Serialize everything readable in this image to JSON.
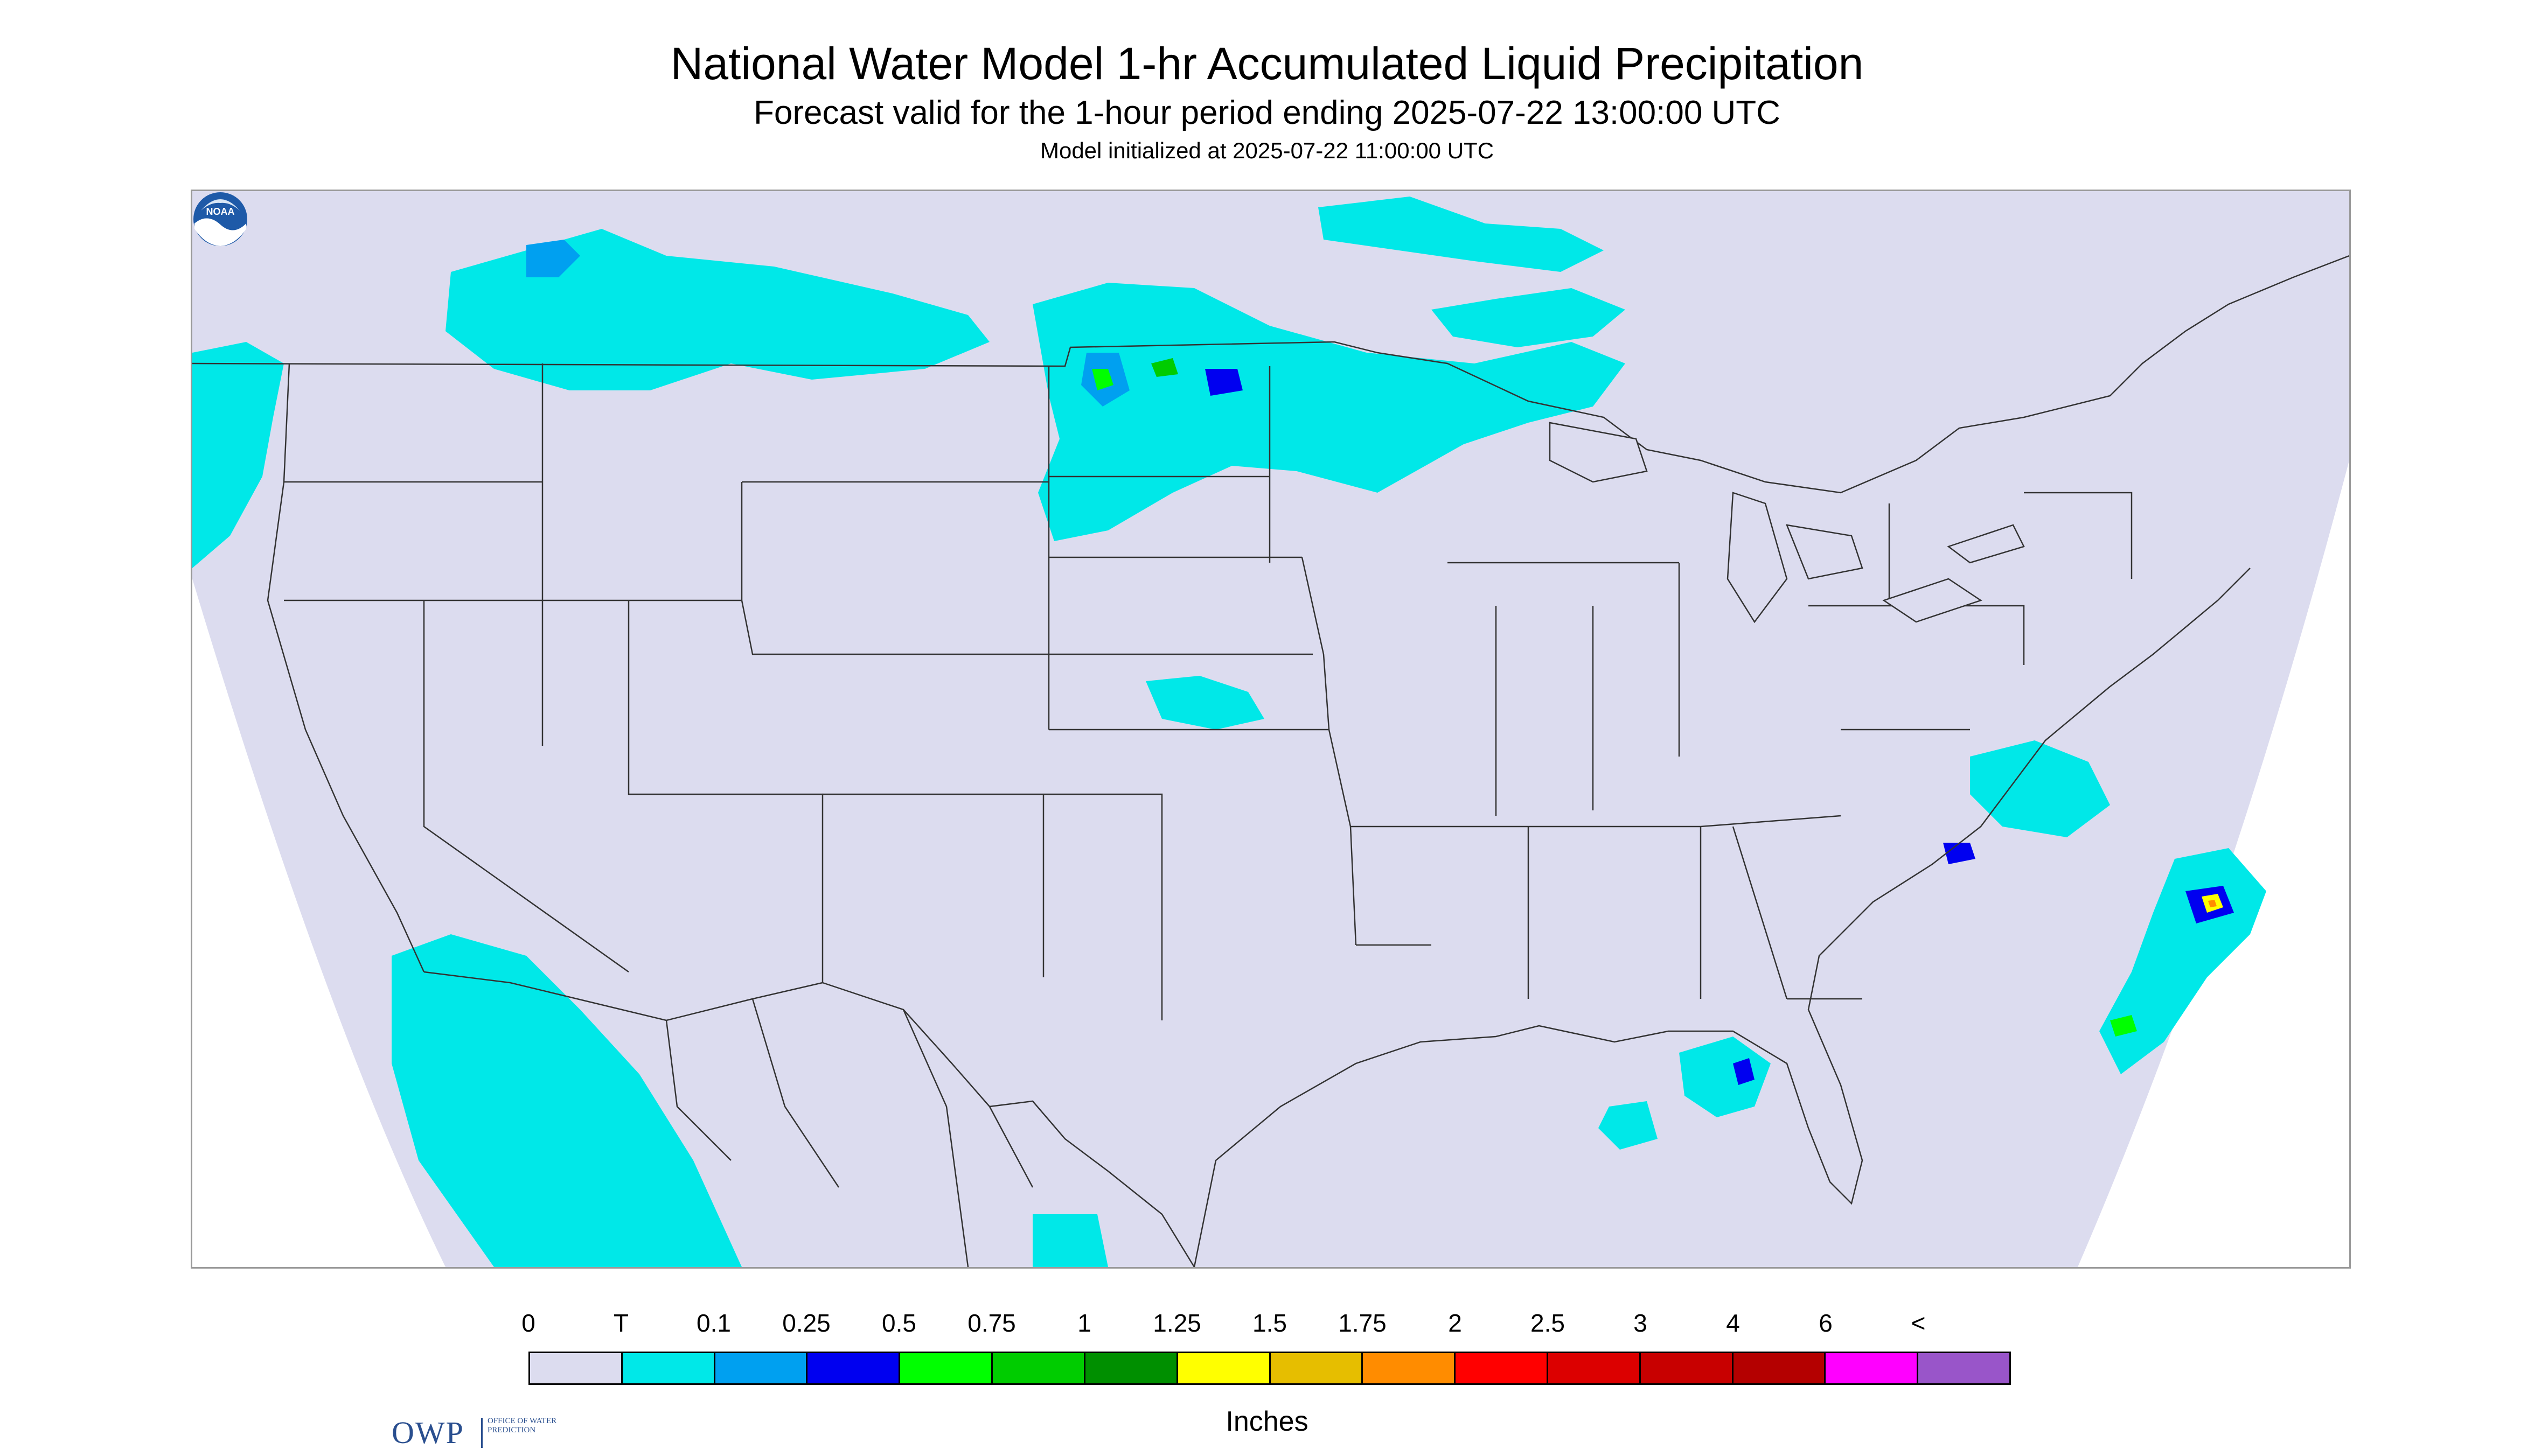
{
  "header": {
    "title": "National Water Model 1-hr Accumulated Liquid Precipitation",
    "subtitle": "Forecast valid for the 1-hour period ending 2025-07-22 13:00:00 UTC",
    "init": "Model initialized at 2025-07-22 11:00:00 UTC"
  },
  "colors": {
    "background": "#ffffff",
    "map_domain": "#dcdcef",
    "boundary_line": "#333333",
    "frame": "#999999"
  },
  "logos": {
    "owp": {
      "letters": "OWP",
      "text": "OFFICE OF WATER PREDICTION"
    },
    "noaa": {
      "text": "NOAA"
    }
  },
  "legend": {
    "labels": [
      "0",
      "T",
      "0.1",
      "0.25",
      "0.5",
      "0.75",
      "1",
      "1.25",
      "1.5",
      "1.75",
      "2",
      "2.5",
      "3",
      "4",
      "6",
      "<"
    ],
    "colors": [
      "#dcdcef",
      "#00e8e8",
      "#00a0f0",
      "#0000f0",
      "#00ff00",
      "#00cc00",
      "#008f00",
      "#ffff00",
      "#e6be00",
      "#ff8c00",
      "#ff0000",
      "#dc0000",
      "#c80000",
      "#b40000",
      "#ff00ff",
      "#9955c9"
    ],
    "units": "Inches"
  },
  "precip_areas": [
    {
      "region": "upper-midwest-dakotas-minnesota",
      "category": "T"
    },
    {
      "region": "northern-rockies-montana",
      "category": "T"
    },
    {
      "region": "pacific-northwest-coast",
      "category": "T"
    },
    {
      "region": "baja-california-and-offshore",
      "category": "T"
    },
    {
      "region": "kansas",
      "category": "T"
    },
    {
      "region": "great-lakes",
      "category": "T"
    },
    {
      "region": "carolina-coast-and-atlantic",
      "category": "0.25"
    },
    {
      "region": "florida-peninsula",
      "category": "0.25"
    },
    {
      "region": "north-dakota-minnesota-cells",
      "category": "0.5"
    }
  ]
}
